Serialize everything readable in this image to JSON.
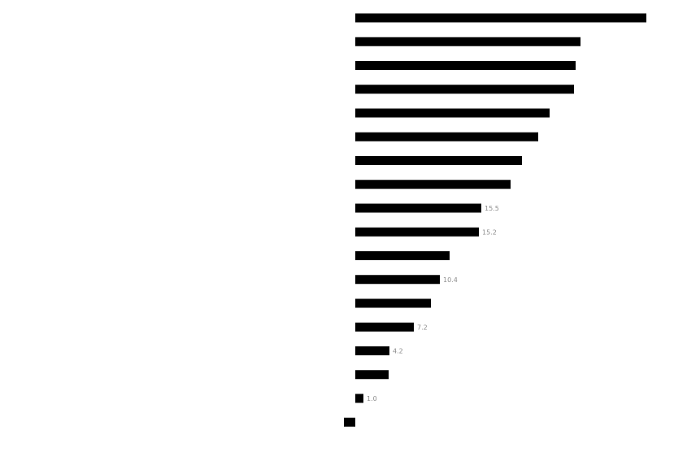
{
  "chart_data": {
    "type": "bar",
    "orientation": "horizontal",
    "title": "",
    "xlabel": "",
    "ylabel": "",
    "categories": [
      "",
      "",
      "",
      "",
      "",
      "",
      "",
      "",
      "",
      "",
      "",
      "",
      "",
      "",
      "",
      "",
      "",
      "",
      ""
    ],
    "values": [
      35.8,
      27.7,
      27.1,
      26.9,
      23.9,
      22.5,
      20.5,
      19.1,
      15.5,
      15.2,
      11.6,
      10.4,
      9.3,
      7.2,
      4.2,
      4.1,
      1.0,
      -1.4,
      null
    ],
    "value_labels": [
      "",
      "",
      "",
      "",
      "",
      "",
      "",
      "",
      "15.5",
      "15.2",
      "",
      "10.4",
      "",
      "7.2",
      "4.2",
      "",
      "1.0",
      "",
      ""
    ],
    "bar_color": "#000000",
    "grid": false,
    "legend": "none"
  },
  "footer": {
    "source": ""
  }
}
